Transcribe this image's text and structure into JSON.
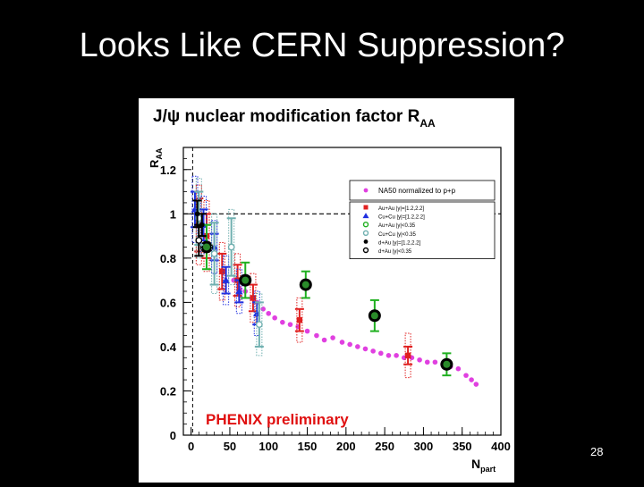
{
  "slide": {
    "title": "Looks Like CERN Suppression?",
    "page_number": "28"
  },
  "chart_data": {
    "type": "scatter",
    "title": "J/ψ nuclear modification factor R",
    "title_subscript": "AA",
    "ylabel": "R",
    "ylabel_subscript": "AA",
    "xlabel": "N",
    "xlabel_subscript": "part",
    "xlim": [
      -10,
      400
    ],
    "ylim": [
      0,
      1.3
    ],
    "xticks": [
      0,
      50,
      100,
      150,
      200,
      250,
      300,
      350,
      400
    ],
    "xtick_labels": [
      "0",
      "50",
      "100",
      "150",
      "200",
      "250",
      "300",
      "350",
      "400"
    ],
    "yticks": [
      0,
      0.2,
      0.4,
      0.6,
      0.8,
      1,
      1.2
    ],
    "ytick_labels": [
      "0",
      "0.2",
      "0.4",
      "0.6",
      "0.8",
      "1",
      "1.2"
    ],
    "reference_line_y": 1,
    "reference_line_x": 2,
    "annotation": "PHENIX preliminary",
    "legend_position": "top-right",
    "legend": [
      {
        "label": "NA50 normalized to p+p",
        "color": "#e040e0",
        "marker": "star"
      },
      {
        "label": "Au+Au |y|=[1.2,2.2]",
        "color": "#e02020",
        "marker": "square"
      },
      {
        "label": "Cu+Cu |y|=[1.2,2.2]",
        "color": "#2030e0",
        "marker": "triangle"
      },
      {
        "label": "Au+Au |y|<0.35",
        "color": "#20b020",
        "marker": "circle-open"
      },
      {
        "label": "Cu+Cu |y|<0.35",
        "color": "#70b0b0",
        "marker": "circle-open"
      },
      {
        "label": "d+Au |y|=[1.2,2.2]",
        "color": "#000000",
        "marker": "star"
      },
      {
        "label": "d+Au |y|<0.35",
        "color": "#000000",
        "marker": "circle-open"
      }
    ],
    "series": [
      {
        "name": "NA50 normalized to p+p",
        "color": "#e040e0",
        "marker": "star",
        "x": [
          55,
          63,
          70,
          78,
          85,
          93,
          100,
          108,
          118,
          128,
          138,
          150,
          162,
          172,
          183,
          195,
          205,
          215,
          225,
          235,
          245,
          255,
          265,
          275,
          285,
          295,
          305,
          315,
          325,
          335,
          345,
          355,
          362,
          368
        ],
        "y": [
          0.7,
          0.66,
          0.65,
          0.62,
          0.6,
          0.57,
          0.55,
          0.53,
          0.51,
          0.5,
          0.49,
          0.47,
          0.45,
          0.43,
          0.44,
          0.42,
          0.41,
          0.4,
          0.39,
          0.38,
          0.37,
          0.36,
          0.36,
          0.35,
          0.35,
          0.34,
          0.33,
          0.33,
          0.32,
          0.31,
          0.3,
          0.27,
          0.25,
          0.23
        ]
      },
      {
        "name": "Au+Au |y|=[1.2,2.2]",
        "color": "#e02020",
        "marker": "square",
        "x": [
          10,
          20,
          40,
          60,
          80,
          140,
          280
        ],
        "y": [
          0.95,
          0.9,
          0.74,
          0.7,
          0.62,
          0.52,
          0.36
        ],
        "yerr": [
          0.12,
          0.1,
          0.08,
          0.07,
          0.06,
          0.05,
          0.04
        ],
        "syst": [
          0.18,
          0.16,
          0.13,
          0.12,
          0.11,
          0.1,
          0.1
        ]
      },
      {
        "name": "Cu+Cu |y|=[1.2,2.2]",
        "color": "#2030e0",
        "marker": "triangle",
        "x": [
          5,
          16,
          30,
          45,
          62,
          85
        ],
        "y": [
          1.02,
          0.95,
          0.85,
          0.7,
          0.65,
          0.55
        ],
        "yerr": [
          0.08,
          0.07,
          0.06,
          0.06,
          0.05,
          0.05
        ],
        "syst": [
          0.15,
          0.13,
          0.12,
          0.11,
          0.1,
          0.1
        ]
      },
      {
        "name": "Au+Au |y|<0.35",
        "color": "#20b020",
        "marker": "circle-open",
        "x": [
          20,
          70,
          148,
          237,
          330
        ],
        "y": [
          0.85,
          0.7,
          0.68,
          0.54,
          0.32
        ],
        "yerr": [
          0.1,
          0.08,
          0.06,
          0.07,
          0.05
        ]
      },
      {
        "name": "Cu+Cu |y|<0.35",
        "color": "#70b0b0",
        "marker": "circle-open",
        "x": [
          10,
          30,
          52,
          88
        ],
        "y": [
          0.98,
          0.82,
          0.85,
          0.5
        ],
        "yerr": [
          0.12,
          0.14,
          0.13,
          0.1
        ],
        "syst": [
          0.18,
          0.18,
          0.17,
          0.14
        ]
      },
      {
        "name": "d+Au |y|=[1.2,2.2]",
        "color": "#000000",
        "marker": "star",
        "x": [
          8,
          14
        ],
        "y": [
          1.0,
          0.95
        ],
        "yerr": [
          0.06,
          0.05
        ]
      },
      {
        "name": "d+Au |y|<0.35",
        "color": "#000000",
        "marker": "circle-open",
        "x": [
          10
        ],
        "y": [
          0.88
        ],
        "yerr": [
          0.07
        ]
      }
    ]
  }
}
